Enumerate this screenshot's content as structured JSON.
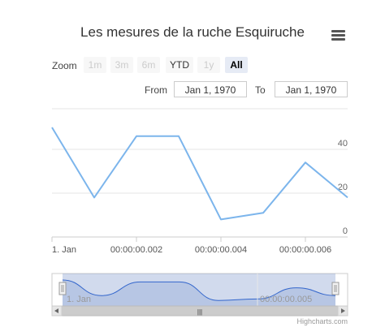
{
  "header": {
    "title": "Les mesures de la ruche Esquiruche",
    "menu_icon": "hamburger-menu-icon"
  },
  "range_selector": {
    "zoom_label": "Zoom",
    "buttons": [
      {
        "label": "1m",
        "state": "disabled"
      },
      {
        "label": "3m",
        "state": "disabled"
      },
      {
        "label": "6m",
        "state": "disabled"
      },
      {
        "label": "YTD",
        "state": "enabled"
      },
      {
        "label": "1y",
        "state": "disabled"
      },
      {
        "label": "All",
        "state": "active"
      }
    ],
    "from_label": "From",
    "from_value": "Jan 1, 1970",
    "to_label": "To",
    "to_value": "Jan 1, 1970"
  },
  "chart_data": {
    "type": "line",
    "title": "Les mesures de la ruche Esquiruche",
    "x_tick_labels": [
      "1. Jan",
      "00:00:00.002",
      "00:00:00.004",
      "00:00:00.006"
    ],
    "x_tick_values": [
      0,
      0.002,
      0.004,
      0.006
    ],
    "xlim": [
      0,
      0.007
    ],
    "y_tick_labels": [
      "0",
      "20",
      "40"
    ],
    "y_tick_values": [
      0,
      20,
      40
    ],
    "ylim": [
      0,
      60
    ],
    "y_axis_side": "right",
    "grid": true,
    "series": [
      {
        "x": [
          0,
          0.001,
          0.002,
          0.003,
          0.004,
          0.005,
          0.006,
          0.007
        ],
        "y": [
          50,
          18,
          46,
          46,
          8,
          11,
          34,
          18
        ],
        "color": "#7cb5ec"
      }
    ],
    "navigator": {
      "x_tick_labels": [
        "1. Jan",
        "00:00:00.005"
      ],
      "x_tick_values": [
        0,
        0.005
      ],
      "selected_range": [
        0,
        0.007
      ],
      "scrollbar_grip": "|||"
    }
  },
  "credits": "Highcharts.com"
}
